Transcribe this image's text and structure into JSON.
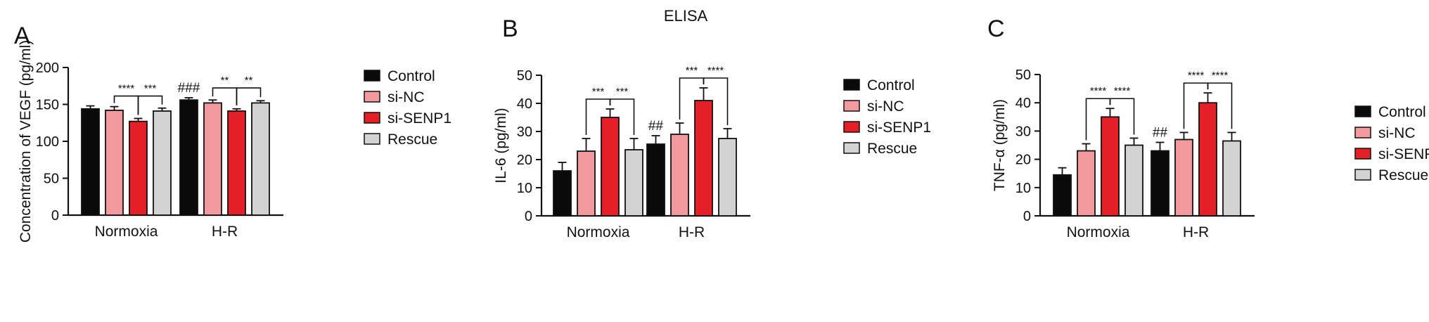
{
  "figure": {
    "title": "ELISA"
  },
  "legend": {
    "entries": [
      "Control",
      "si-NC",
      "si-SENP1",
      "Rescue"
    ],
    "colors": [
      "#0a0a0a",
      "#f29a9e",
      "#e51f26",
      "#d3d3d3"
    ]
  },
  "chart_data": [
    {
      "panel": "A",
      "type": "bar",
      "categories": [
        "Normoxia",
        "H-R"
      ],
      "series": [
        {
          "name": "Control",
          "values": [
            144,
            156
          ],
          "errors": [
            4,
            3
          ]
        },
        {
          "name": "si-NC",
          "values": [
            142,
            152
          ],
          "errors": [
            5,
            4
          ]
        },
        {
          "name": "si-SENP1",
          "values": [
            127,
            141
          ],
          "errors": [
            4,
            3
          ]
        },
        {
          "name": "Rescue",
          "values": [
            141,
            152
          ],
          "errors": [
            4,
            3
          ]
        }
      ],
      "ylabel": "Concentration of VEGF (pg/ml)",
      "ylim": [
        0,
        200
      ],
      "yticks": [
        0,
        50,
        100,
        150,
        200
      ],
      "legend_position": "right",
      "significance": [
        {
          "group": 0,
          "from": 1,
          "to": 2,
          "label": "****"
        },
        {
          "group": 0,
          "from": 2,
          "to": 3,
          "label": "***"
        },
        {
          "group": 1,
          "from": 1,
          "to": 2,
          "label": "**"
        },
        {
          "group": 1,
          "from": 2,
          "to": 3,
          "label": "**"
        }
      ],
      "group_marks": [
        {
          "group": 1,
          "series": 0,
          "label": "###"
        }
      ]
    },
    {
      "panel": "B",
      "type": "bar",
      "categories": [
        "Normoxia",
        "H-R"
      ],
      "series": [
        {
          "name": "Control",
          "values": [
            16,
            25.5
          ],
          "errors": [
            3,
            3
          ]
        },
        {
          "name": "si-NC",
          "values": [
            23,
            29
          ],
          "errors": [
            4.5,
            4
          ]
        },
        {
          "name": "si-SENP1",
          "values": [
            35,
            41
          ],
          "errors": [
            3,
            4.5
          ]
        },
        {
          "name": "Rescue",
          "values": [
            23.5,
            27.5
          ],
          "errors": [
            4,
            3.5
          ]
        }
      ],
      "ylabel": "IL-6 (pg/ml)",
      "ylim": [
        0,
        50
      ],
      "yticks": [
        0,
        10,
        20,
        30,
        40,
        50
      ],
      "legend_position": "right",
      "significance": [
        {
          "group": 0,
          "from": 1,
          "to": 2,
          "label": "***"
        },
        {
          "group": 0,
          "from": 2,
          "to": 3,
          "label": "***"
        },
        {
          "group": 1,
          "from": 1,
          "to": 2,
          "label": "***"
        },
        {
          "group": 1,
          "from": 2,
          "to": 3,
          "label": "****"
        }
      ],
      "group_marks": [
        {
          "group": 1,
          "series": 0,
          "label": "##"
        }
      ]
    },
    {
      "panel": "C",
      "type": "bar",
      "categories": [
        "Normoxia",
        "H-R"
      ],
      "series": [
        {
          "name": "Control",
          "values": [
            14.5,
            23
          ],
          "errors": [
            2.5,
            3
          ]
        },
        {
          "name": "si-NC",
          "values": [
            23,
            27
          ],
          "errors": [
            2.5,
            2.5
          ]
        },
        {
          "name": "si-SENP1",
          "values": [
            35,
            40
          ],
          "errors": [
            3,
            3.5
          ]
        },
        {
          "name": "Rescue",
          "values": [
            25,
            26.5
          ],
          "errors": [
            2.5,
            3
          ]
        }
      ],
      "ylabel": "TNF-α (pg/ml)",
      "ylim": [
        0,
        50
      ],
      "yticks": [
        0,
        10,
        20,
        30,
        40,
        50
      ],
      "legend_position": "right",
      "significance": [
        {
          "group": 0,
          "from": 1,
          "to": 2,
          "label": "****"
        },
        {
          "group": 0,
          "from": 2,
          "to": 3,
          "label": "****"
        },
        {
          "group": 1,
          "from": 1,
          "to": 2,
          "label": "****"
        },
        {
          "group": 1,
          "from": 2,
          "to": 3,
          "label": "****"
        }
      ],
      "group_marks": [
        {
          "group": 1,
          "series": 0,
          "label": "##"
        }
      ]
    }
  ]
}
